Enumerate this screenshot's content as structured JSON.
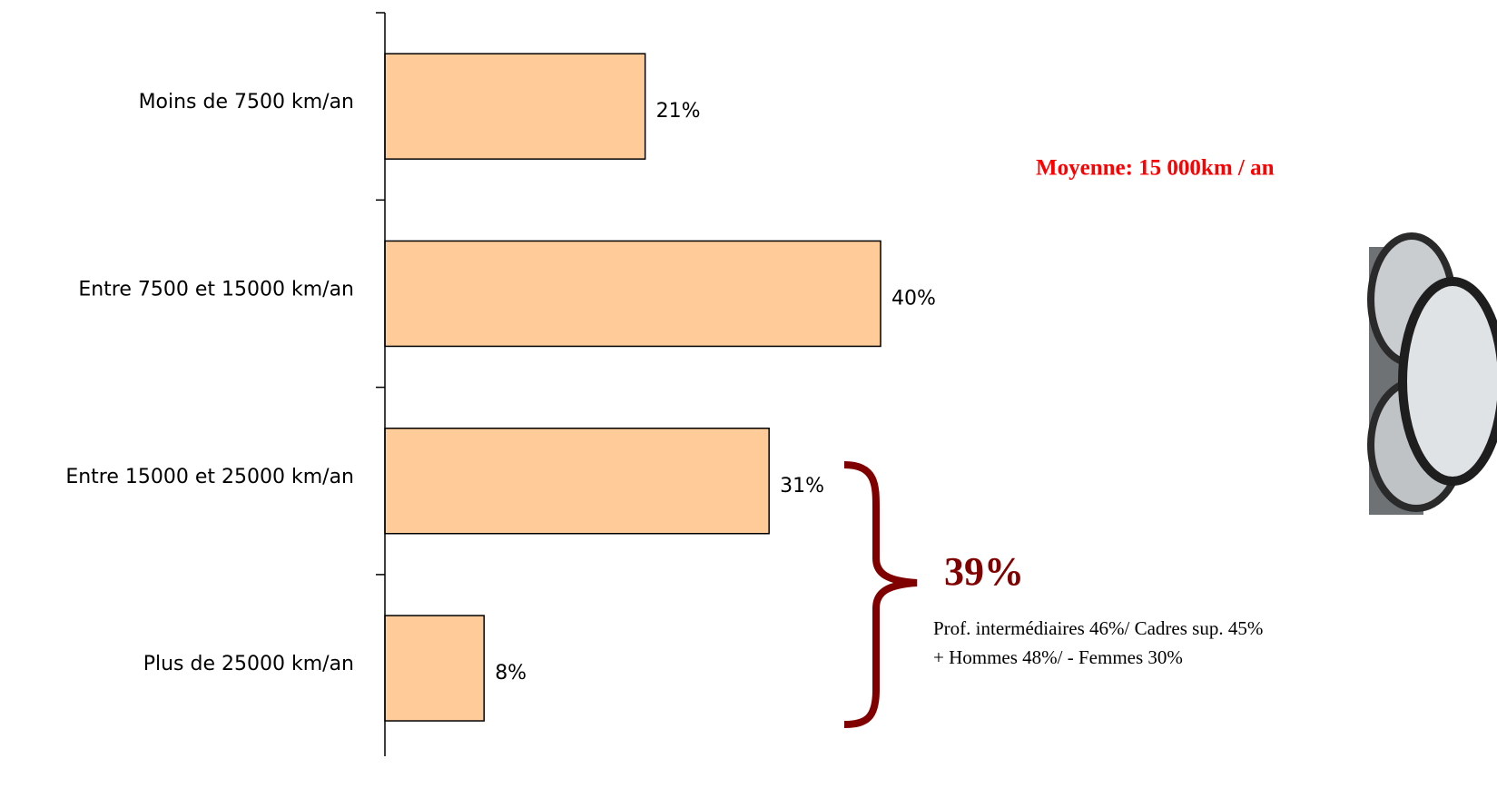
{
  "chart_data": {
    "type": "bar",
    "orientation": "horizontal",
    "categories": [
      "Moins de 7500 km/an",
      "Entre 7500 et 15000 km/an",
      "Entre 15000 et 25000 km/an",
      "Plus de 25000 km/an"
    ],
    "values": [
      21,
      40,
      31,
      8
    ],
    "value_labels": [
      "21%",
      "40%",
      "31%",
      "8%"
    ],
    "color": "#ffcc99",
    "annotations": {
      "average": "Moyenne: 15 000km / an",
      "bracket_total": "39%",
      "notes": [
        "Prof. intermédiaires 46%/ Cadres sup. 45%",
        "+ Hommes 48%/ - Femmes 30%"
      ]
    }
  }
}
